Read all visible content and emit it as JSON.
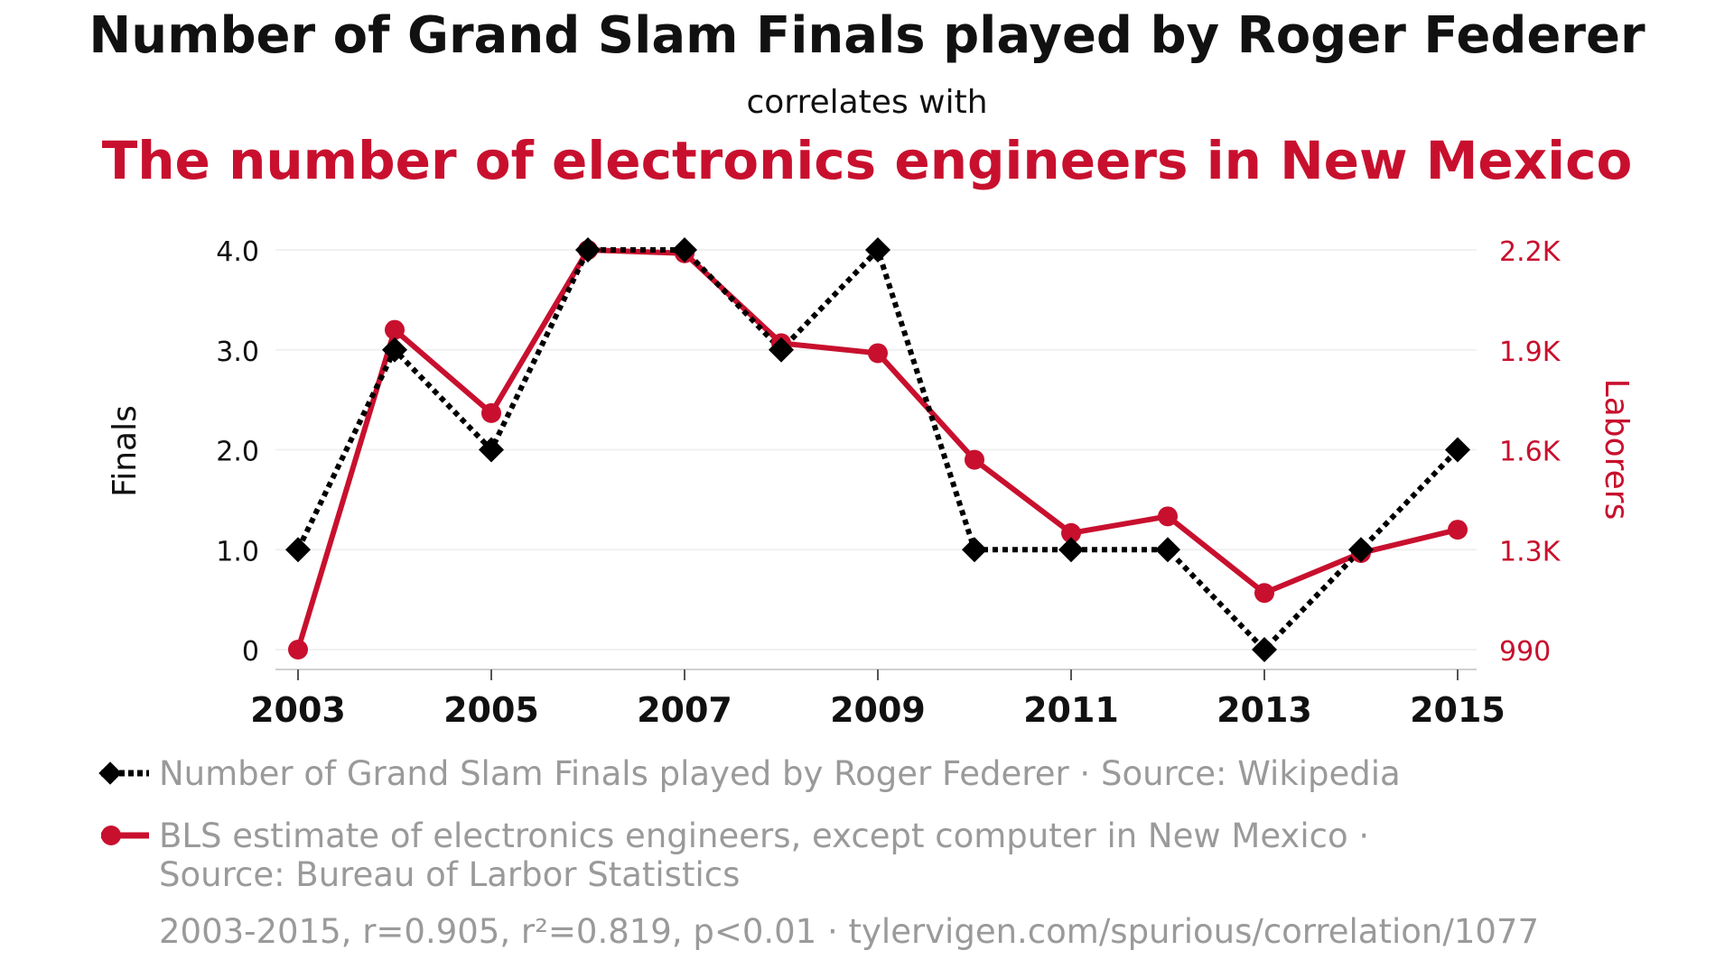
{
  "colors": {
    "series_a": "#000000",
    "series_b": "#c8102e",
    "text_main": "#111111",
    "text_muted": "#9a9a9a",
    "grid": "#f0f0f0",
    "axis": "#cfcfcf"
  },
  "chart_data": {
    "type": "line",
    "title": "Number of Grand Slam Finals played by Roger Federer",
    "connector": "correlates with",
    "subtitle": "The number of electronics engineers in New Mexico",
    "ylabel_left": "Finals",
    "ylabel_right": "Laborers",
    "x": [
      2003,
      2004,
      2005,
      2006,
      2007,
      2008,
      2009,
      2010,
      2011,
      2012,
      2013,
      2014,
      2015
    ],
    "x_ticks": [
      "2003",
      "2005",
      "2007",
      "2009",
      "2011",
      "2013",
      "2015"
    ],
    "xlim": [
      2003,
      2015
    ],
    "ylim_left": [
      0,
      4
    ],
    "y_ticks_left": [
      "0",
      "1.0",
      "2.0",
      "3.0",
      "4.0"
    ],
    "ylim_right": [
      990,
      2190
    ],
    "y_ticks_right": [
      "990",
      "1.3K",
      "1.6K",
      "1.9K",
      "2.2K"
    ],
    "grid": true,
    "series": [
      {
        "name": "Number of Grand Slam Finals played by Roger Federer",
        "axis": "left",
        "style": "dotted-diamond",
        "values": [
          1,
          3,
          2,
          4,
          4,
          3,
          4,
          1,
          1,
          1,
          0,
          1,
          2
        ]
      },
      {
        "name": "BLS estimate of electronics engineers, except computer in New Mexico",
        "axis": "right",
        "style": "solid-circle",
        "values": [
          990,
          1950,
          1700,
          2190,
          2180,
          1910,
          1880,
          1560,
          1340,
          1390,
          1160,
          1280,
          1350
        ]
      }
    ],
    "legend": [
      {
        "text": "Number of Grand Slam Finals played by Roger Federer · Source: Wikipedia"
      },
      {
        "line1": "BLS estimate of electronics engineers, except computer in New Mexico ·",
        "line2": "Source: Bureau of Larbor Statistics"
      }
    ],
    "footer": "2003-2015, r=0.905, r²=0.819, p<0.01 · tylervigen.com/spurious/correlation/1077"
  }
}
